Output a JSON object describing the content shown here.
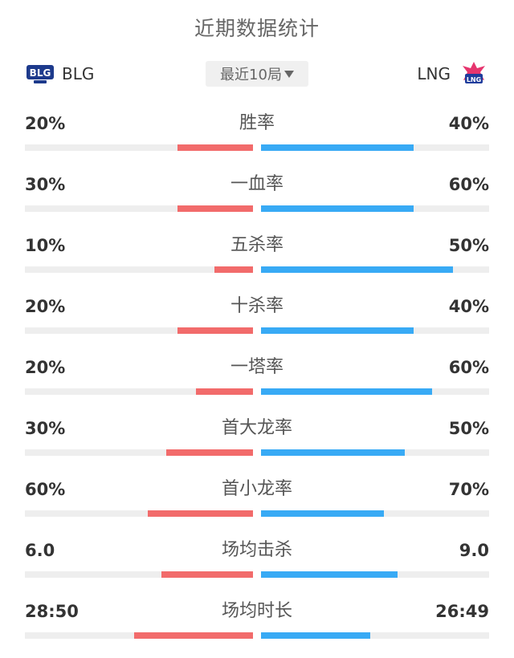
{
  "title": "近期数据统计",
  "left_team": {
    "name": "BLG",
    "logo_icon": "blg-logo-icon",
    "color": "#f26b6b"
  },
  "right_team": {
    "name": "LNG",
    "logo_icon": "lng-logo-icon",
    "color": "#38aaf5"
  },
  "selector": {
    "label": "最近10局"
  },
  "stats": [
    {
      "label": "胜率",
      "left": "20%",
      "right": "40%",
      "left_fill": 0.33,
      "right_fill": 0.67
    },
    {
      "label": "一血率",
      "left": "30%",
      "right": "60%",
      "left_fill": 0.33,
      "right_fill": 0.67
    },
    {
      "label": "五杀率",
      "left": "10%",
      "right": "50%",
      "left_fill": 0.17,
      "right_fill": 0.84
    },
    {
      "label": "十杀率",
      "left": "20%",
      "right": "40%",
      "left_fill": 0.33,
      "right_fill": 0.67
    },
    {
      "label": "一塔率",
      "left": "20%",
      "right": "60%",
      "left_fill": 0.25,
      "right_fill": 0.75
    },
    {
      "label": "首大龙率",
      "left": "30%",
      "right": "50%",
      "left_fill": 0.38,
      "right_fill": 0.63
    },
    {
      "label": "首小龙率",
      "left": "60%",
      "right": "70%",
      "left_fill": 0.46,
      "right_fill": 0.54
    },
    {
      "label": "场均击杀",
      "left": "6.0",
      "right": "9.0",
      "left_fill": 0.4,
      "right_fill": 0.6
    },
    {
      "label": "场均时长",
      "left": "28:50",
      "right": "26:49",
      "left_fill": 0.52,
      "right_fill": 0.48
    }
  ]
}
